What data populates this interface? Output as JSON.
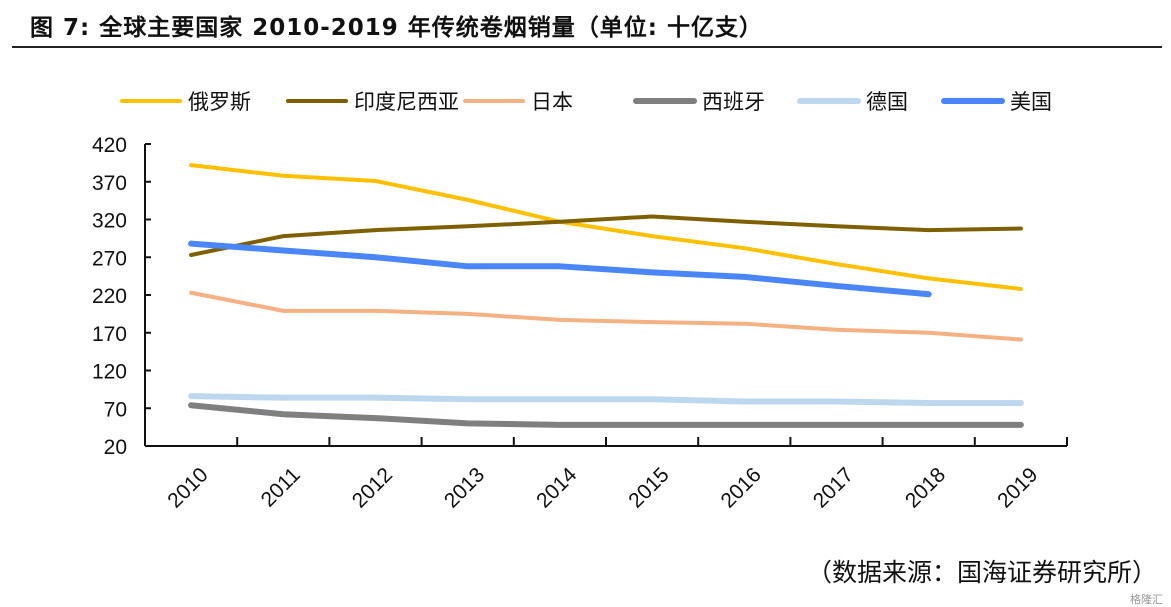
{
  "title": "图 7:  全球主要国家 2010-2019 年传统卷烟销量（单位:  十亿支）",
  "source": "（数据来源：国海证券研究所）",
  "watermark": "格隆汇",
  "chart_data": {
    "type": "line",
    "title": "图 7:  全球主要国家 2010-2019 年传统卷烟销量（单位:  十亿支）",
    "categories": [
      "2010",
      "2011",
      "2012",
      "2013",
      "2014",
      "2015",
      "2016",
      "2017",
      "2018",
      "2019"
    ],
    "ylim": [
      20,
      420
    ],
    "yticks": [
      20,
      70,
      120,
      170,
      220,
      270,
      320,
      370,
      420
    ],
    "grid": false,
    "legend": "top",
    "series": [
      {
        "name": "俄罗斯",
        "color": "#FFC000",
        "width": 4,
        "values": [
          392,
          378,
          371,
          346,
          317,
          298,
          282,
          261,
          242,
          228
        ]
      },
      {
        "name": "印度尼西亚",
        "color": "#7F6000",
        "width": 4,
        "values": [
          273,
          298,
          306,
          311,
          317,
          324,
          317,
          311,
          306,
          308
        ]
      },
      {
        "name": "日本",
        "color": "#F4B183",
        "width": 4,
        "values": [
          223,
          199,
          199,
          195,
          187,
          184,
          182,
          174,
          170,
          161
        ]
      },
      {
        "name": "西班牙",
        "color": "#7F7F7F",
        "width": 6,
        "values": [
          74,
          62,
          57,
          50,
          48,
          48,
          48,
          48,
          48,
          48
        ]
      },
      {
        "name": "德国",
        "color": "#BDD7EE",
        "width": 6,
        "values": [
          86,
          84,
          84,
          82,
          82,
          82,
          79,
          79,
          77,
          77
        ]
      },
      {
        "name": "美国",
        "color": "#4A86F7",
        "width": 6,
        "values": [
          288,
          279,
          270,
          258,
          258,
          250,
          244,
          232,
          221,
          null
        ]
      }
    ]
  }
}
